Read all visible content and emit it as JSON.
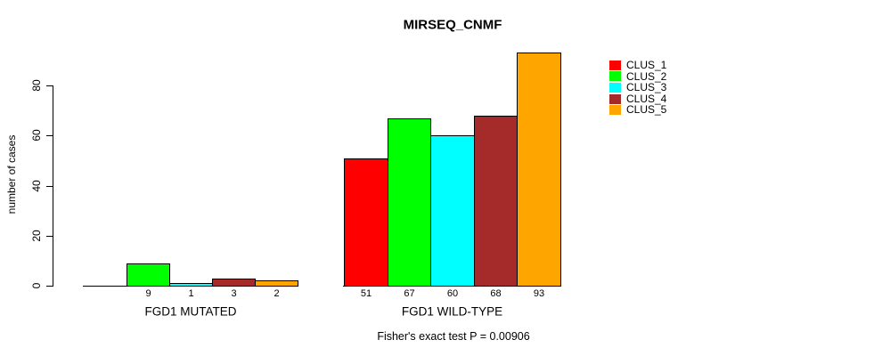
{
  "title": "MIRSEQ_CNMF",
  "footer": {
    "caption": "Fisher's exact test P = 0.00906"
  },
  "y_axis": {
    "label": "number of cases",
    "ticks": [
      0,
      20,
      40,
      60,
      80
    ]
  },
  "chart_data": {
    "type": "bar",
    "title": "MIRSEQ_CNMF",
    "xlabel": "",
    "ylabel": "number of cases",
    "ylim": [
      0,
      93
    ],
    "yticks": [
      0,
      20,
      40,
      60,
      80
    ],
    "grid": false,
    "legend_position": "right",
    "annotation": "Fisher's exact test P = 0.00906",
    "categories": [
      "FGD1 MUTATED",
      "FGD1 WILD-TYPE"
    ],
    "series": [
      {
        "name": "CLUS_1",
        "color": "#ff0000",
        "values": [
          0,
          51
        ],
        "bar_labels": [
          "",
          "51"
        ]
      },
      {
        "name": "CLUS_2",
        "color": "#00ff00",
        "values": [
          9,
          67
        ],
        "bar_labels": [
          "9",
          "67"
        ]
      },
      {
        "name": "CLUS_3",
        "color": "#00ffff",
        "values": [
          1,
          60
        ],
        "bar_labels": [
          "1",
          "60"
        ]
      },
      {
        "name": "CLUS_4",
        "color": "#a52a2a",
        "values": [
          3,
          68
        ],
        "bar_labels": [
          "3",
          "68"
        ]
      },
      {
        "name": "CLUS_5",
        "color": "#ffa500",
        "values": [
          2,
          93
        ],
        "bar_labels": [
          "2",
          "93"
        ]
      }
    ]
  }
}
